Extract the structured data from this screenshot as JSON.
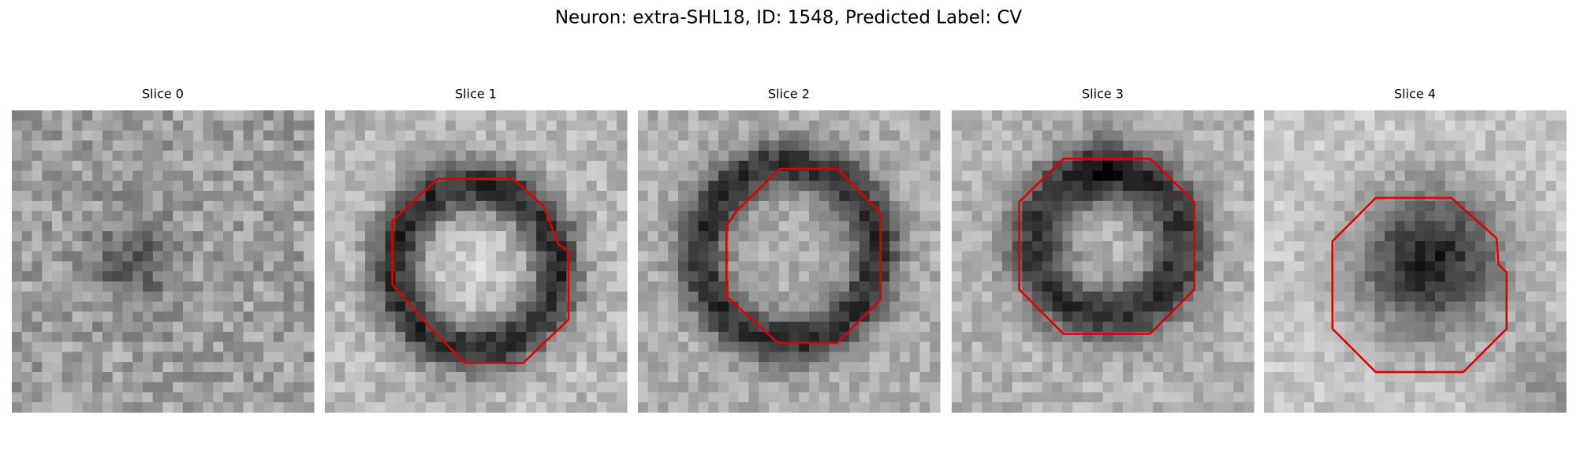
{
  "title": "Neuron: extra-SHL18, ID: 1548, Predicted Label: CV",
  "panels": [
    {
      "title": "Slice 0"
    },
    {
      "title": "Slice 1"
    },
    {
      "title": "Slice 2"
    },
    {
      "title": "Slice 3"
    },
    {
      "title": "Slice 4"
    }
  ]
}
